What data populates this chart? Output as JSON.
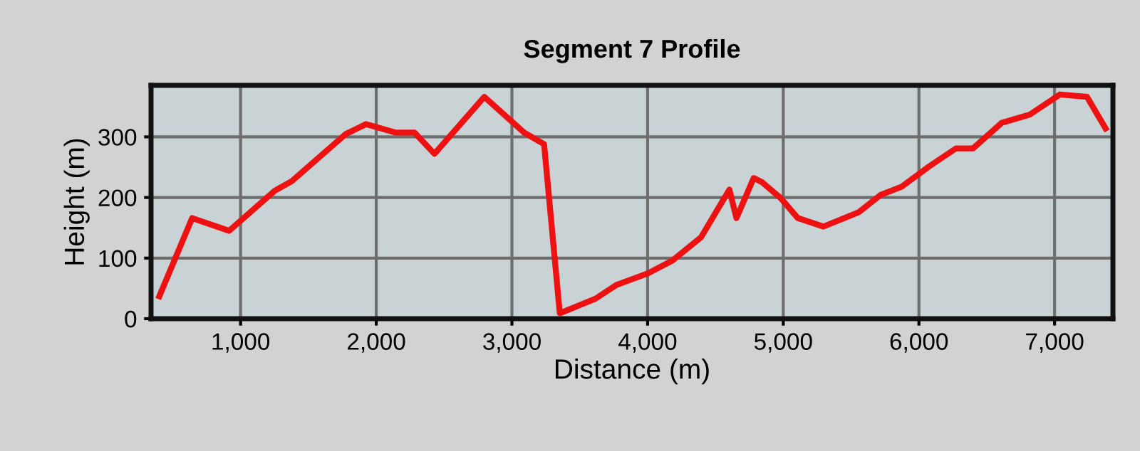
{
  "chart_data": {
    "type": "line",
    "title": "Segment 7 Profile",
    "xlabel": "Distance (m)",
    "ylabel": "Height (m)",
    "x": [
      401,
      643,
      916,
      1252,
      1378,
      1777,
      1924,
      2145,
      2282,
      2429,
      2796,
      3090,
      3237,
      3353,
      3616,
      3773,
      4004,
      4183,
      4393,
      4603,
      4655,
      4782,
      4845,
      4981,
      5107,
      5296,
      5559,
      5716,
      5874,
      6074,
      6273,
      6399,
      6609,
      6819,
      7040,
      7239,
      7376
    ],
    "series": [
      {
        "color": "#ee1111",
        "values": [
          37,
          166,
          145,
          211,
          227,
          305,
          321,
          307,
          307,
          272,
          366,
          307,
          288,
          9,
          33,
          56,
          75,
          96,
          134,
          213,
          166,
          232,
          225,
          199,
          166,
          152,
          176,
          204,
          218,
          251,
          281,
          281,
          323,
          337,
          370,
          366,
          314
        ]
      }
    ],
    "xlim": [
      340,
      7430
    ],
    "ylim": [
      0,
      385
    ],
    "xticks": [
      {
        "value": 1000,
        "label": "1,000"
      },
      {
        "value": 2000,
        "label": "2,000"
      },
      {
        "value": 3000,
        "label": "3,000"
      },
      {
        "value": 4000,
        "label": "4,000"
      },
      {
        "value": 5000,
        "label": "5,000"
      },
      {
        "value": 6000,
        "label": "6,000"
      },
      {
        "value": 7000,
        "label": "7,000"
      }
    ],
    "yticks": [
      0,
      100,
      200,
      300
    ],
    "grid": true,
    "legend": false,
    "marker": "none",
    "line_style": "solid"
  }
}
